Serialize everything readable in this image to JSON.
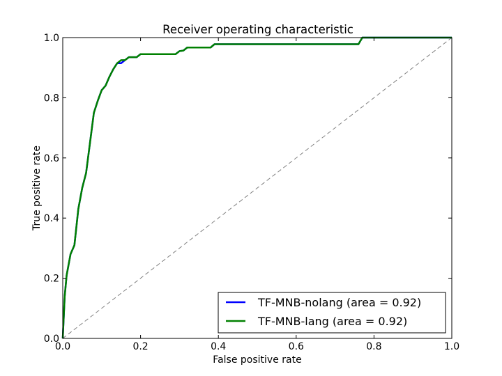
{
  "chart_data": {
    "type": "line",
    "title": "Receiver operating characteristic",
    "xlabel": "False positive rate",
    "ylabel": "True positive rate",
    "xlim": [
      0.0,
      1.0
    ],
    "ylim": [
      0.0,
      1.0
    ],
    "xticks": [
      0.0,
      0.2,
      0.4,
      0.6,
      0.8,
      1.0
    ],
    "yticks": [
      0.0,
      0.2,
      0.4,
      0.6,
      0.8,
      1.0
    ],
    "xtick_labels": [
      "0.0",
      "0.2",
      "0.4",
      "0.6",
      "0.8",
      "1.0"
    ],
    "ytick_labels": [
      "0.0",
      "0.2",
      "0.4",
      "0.6",
      "0.8",
      "1.0"
    ],
    "grid": false,
    "legend_position": "lower-right",
    "diagonal": {
      "x": [
        0,
        1
      ],
      "y": [
        0,
        1
      ],
      "color": "#808080",
      "style": "dashed"
    },
    "series": [
      {
        "name": "TF-MNB-nolang (area = 0.92)",
        "color": "#0000ff",
        "x": [
          0.0,
          0.005,
          0.01,
          0.02,
          0.03,
          0.04,
          0.05,
          0.06,
          0.07,
          0.08,
          0.09,
          0.1,
          0.11,
          0.12,
          0.13,
          0.14,
          0.15,
          0.16,
          0.17,
          0.19,
          0.2,
          0.22,
          0.29,
          0.3,
          0.31,
          0.32,
          0.38,
          0.39,
          0.42,
          0.76,
          0.77,
          1.0
        ],
        "y": [
          0.0,
          0.14,
          0.21,
          0.28,
          0.31,
          0.43,
          0.5,
          0.55,
          0.65,
          0.75,
          0.79,
          0.825,
          0.84,
          0.87,
          0.895,
          0.915,
          0.915,
          0.925,
          0.935,
          0.935,
          0.945,
          0.945,
          0.945,
          0.955,
          0.957,
          0.967,
          0.967,
          0.978,
          0.978,
          0.978,
          1.0,
          1.0
        ]
      },
      {
        "name": "TF-MNB-lang (area = 0.92)",
        "color": "#008000",
        "x": [
          0.0,
          0.005,
          0.01,
          0.02,
          0.03,
          0.04,
          0.05,
          0.06,
          0.07,
          0.08,
          0.09,
          0.1,
          0.11,
          0.12,
          0.13,
          0.14,
          0.15,
          0.16,
          0.17,
          0.19,
          0.2,
          0.22,
          0.29,
          0.3,
          0.31,
          0.32,
          0.38,
          0.39,
          0.42,
          0.76,
          0.77,
          1.0
        ],
        "y": [
          0.0,
          0.14,
          0.21,
          0.28,
          0.31,
          0.43,
          0.5,
          0.55,
          0.65,
          0.75,
          0.79,
          0.825,
          0.84,
          0.87,
          0.895,
          0.915,
          0.925,
          0.925,
          0.935,
          0.935,
          0.945,
          0.945,
          0.945,
          0.955,
          0.957,
          0.967,
          0.967,
          0.978,
          0.978,
          0.978,
          1.0,
          1.0
        ]
      }
    ]
  }
}
